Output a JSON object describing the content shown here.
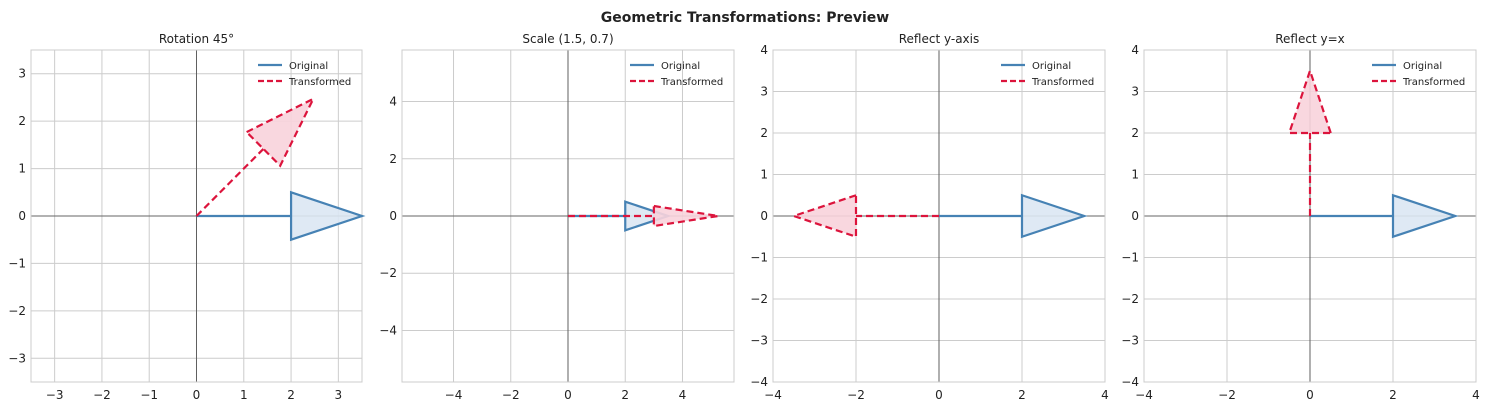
{
  "suptitle": "Geometric Transformations: Preview",
  "colors": {
    "original": "#4682b4",
    "original_fill": "#dce7f3",
    "transformed": "#dc143c",
    "transformed_fill": "#f8d3dc",
    "grid": "#cccccc",
    "axis_line": "#444444",
    "frame": "#cccccc"
  },
  "chart_data": [
    {
      "type": "line",
      "title": "Rotation 45°",
      "xlim": [
        -3.5,
        3.5
      ],
      "ylim": [
        -3.5,
        3.5
      ],
      "xticks": [
        -3,
        -2,
        -1,
        0,
        1,
        2,
        3
      ],
      "yticks": [
        -3,
        -2,
        -1,
        0,
        1,
        2,
        3
      ],
      "xticklabels": [
        "−3",
        "−2",
        "−1",
        "0",
        "1",
        "2",
        "3"
      ],
      "yticklabels": [
        "−3",
        "−2",
        "−1",
        "0",
        "1",
        "2",
        "3"
      ],
      "grid": true,
      "legend": "top-right",
      "series": [
        {
          "name": "Original",
          "style": "solid",
          "shaft": [
            [
              0,
              0
            ],
            [
              2,
              0
            ]
          ],
          "head": [
            [
              2,
              0.5
            ],
            [
              3.5,
              0
            ],
            [
              2,
              -0.5
            ]
          ]
        },
        {
          "name": "Transformed",
          "style": "dashed",
          "shaft": [
            [
              0,
              0
            ],
            [
              1.414,
              1.414
            ]
          ],
          "head": [
            [
              1.06,
              1.77
            ],
            [
              2.47,
              2.47
            ],
            [
              1.77,
              1.06
            ]
          ]
        }
      ]
    },
    {
      "type": "line",
      "title": "Scale (1.5, 0.7)",
      "xlim": [
        -5.8,
        5.8
      ],
      "ylim": [
        -5.8,
        5.8
      ],
      "xticks": [
        -4,
        -2,
        0,
        2,
        4
      ],
      "yticks": [
        -4,
        -2,
        0,
        2,
        4
      ],
      "xticklabels": [
        "−4",
        "−2",
        "0",
        "2",
        "4"
      ],
      "yticklabels": [
        "−4",
        "−2",
        "0",
        "2",
        "4"
      ],
      "grid": true,
      "legend": "top-right",
      "series": [
        {
          "name": "Original",
          "style": "solid",
          "shaft": [
            [
              0,
              0
            ],
            [
              2,
              0
            ]
          ],
          "head": [
            [
              2,
              0.5
            ],
            [
              3.5,
              0
            ],
            [
              2,
              -0.5
            ]
          ]
        },
        {
          "name": "Transformed",
          "style": "dashed",
          "shaft": [
            [
              0,
              0
            ],
            [
              3,
              0
            ]
          ],
          "head": [
            [
              3,
              0.35
            ],
            [
              5.25,
              0
            ],
            [
              3,
              -0.35
            ]
          ]
        }
      ]
    },
    {
      "type": "line",
      "title": "Reflect y-axis",
      "xlim": [
        -4,
        4
      ],
      "ylim": [
        -4,
        4
      ],
      "xticks": [
        -4,
        -2,
        0,
        2,
        4
      ],
      "yticks": [
        -4,
        -3,
        -2,
        -1,
        0,
        1,
        2,
        3,
        4
      ],
      "xticklabels": [
        "−4",
        "−2",
        "0",
        "2",
        "4"
      ],
      "yticklabels": [
        "−4",
        "−3",
        "−2",
        "−1",
        "0",
        "1",
        "2",
        "3",
        "4"
      ],
      "grid": true,
      "legend": "top-right",
      "series": [
        {
          "name": "Original",
          "style": "solid",
          "shaft": [
            [
              0,
              0
            ],
            [
              2,
              0
            ]
          ],
          "head": [
            [
              2,
              0.5
            ],
            [
              3.5,
              0
            ],
            [
              2,
              -0.5
            ]
          ]
        },
        {
          "name": "Transformed",
          "style": "dashed",
          "shaft": [
            [
              0,
              0
            ],
            [
              -2,
              0
            ]
          ],
          "head": [
            [
              -2,
              0.5
            ],
            [
              -3.5,
              0
            ],
            [
              -2,
              -0.5
            ]
          ]
        }
      ]
    },
    {
      "type": "line",
      "title": "Reflect y=x",
      "xlim": [
        -4,
        4
      ],
      "ylim": [
        -4,
        4
      ],
      "xticks": [
        -4,
        -2,
        0,
        2,
        4
      ],
      "yticks": [
        -4,
        -3,
        -2,
        -1,
        0,
        1,
        2,
        3,
        4
      ],
      "xticklabels": [
        "−4",
        "−2",
        "0",
        "2",
        "4"
      ],
      "yticklabels": [
        "−4",
        "−3",
        "−2",
        "−1",
        "0",
        "1",
        "2",
        "3",
        "4"
      ],
      "grid": true,
      "legend": "top-right",
      "series": [
        {
          "name": "Original",
          "style": "solid",
          "shaft": [
            [
              0,
              0
            ],
            [
              2,
              0
            ]
          ],
          "head": [
            [
              2,
              0.5
            ],
            [
              3.5,
              0
            ],
            [
              2,
              -0.5
            ]
          ]
        },
        {
          "name": "Transformed",
          "style": "dashed",
          "shaft": [
            [
              0,
              0
            ],
            [
              0,
              2
            ]
          ],
          "head": [
            [
              0.5,
              2
            ],
            [
              0,
              3.5
            ],
            [
              -0.5,
              2
            ]
          ]
        }
      ]
    }
  ]
}
